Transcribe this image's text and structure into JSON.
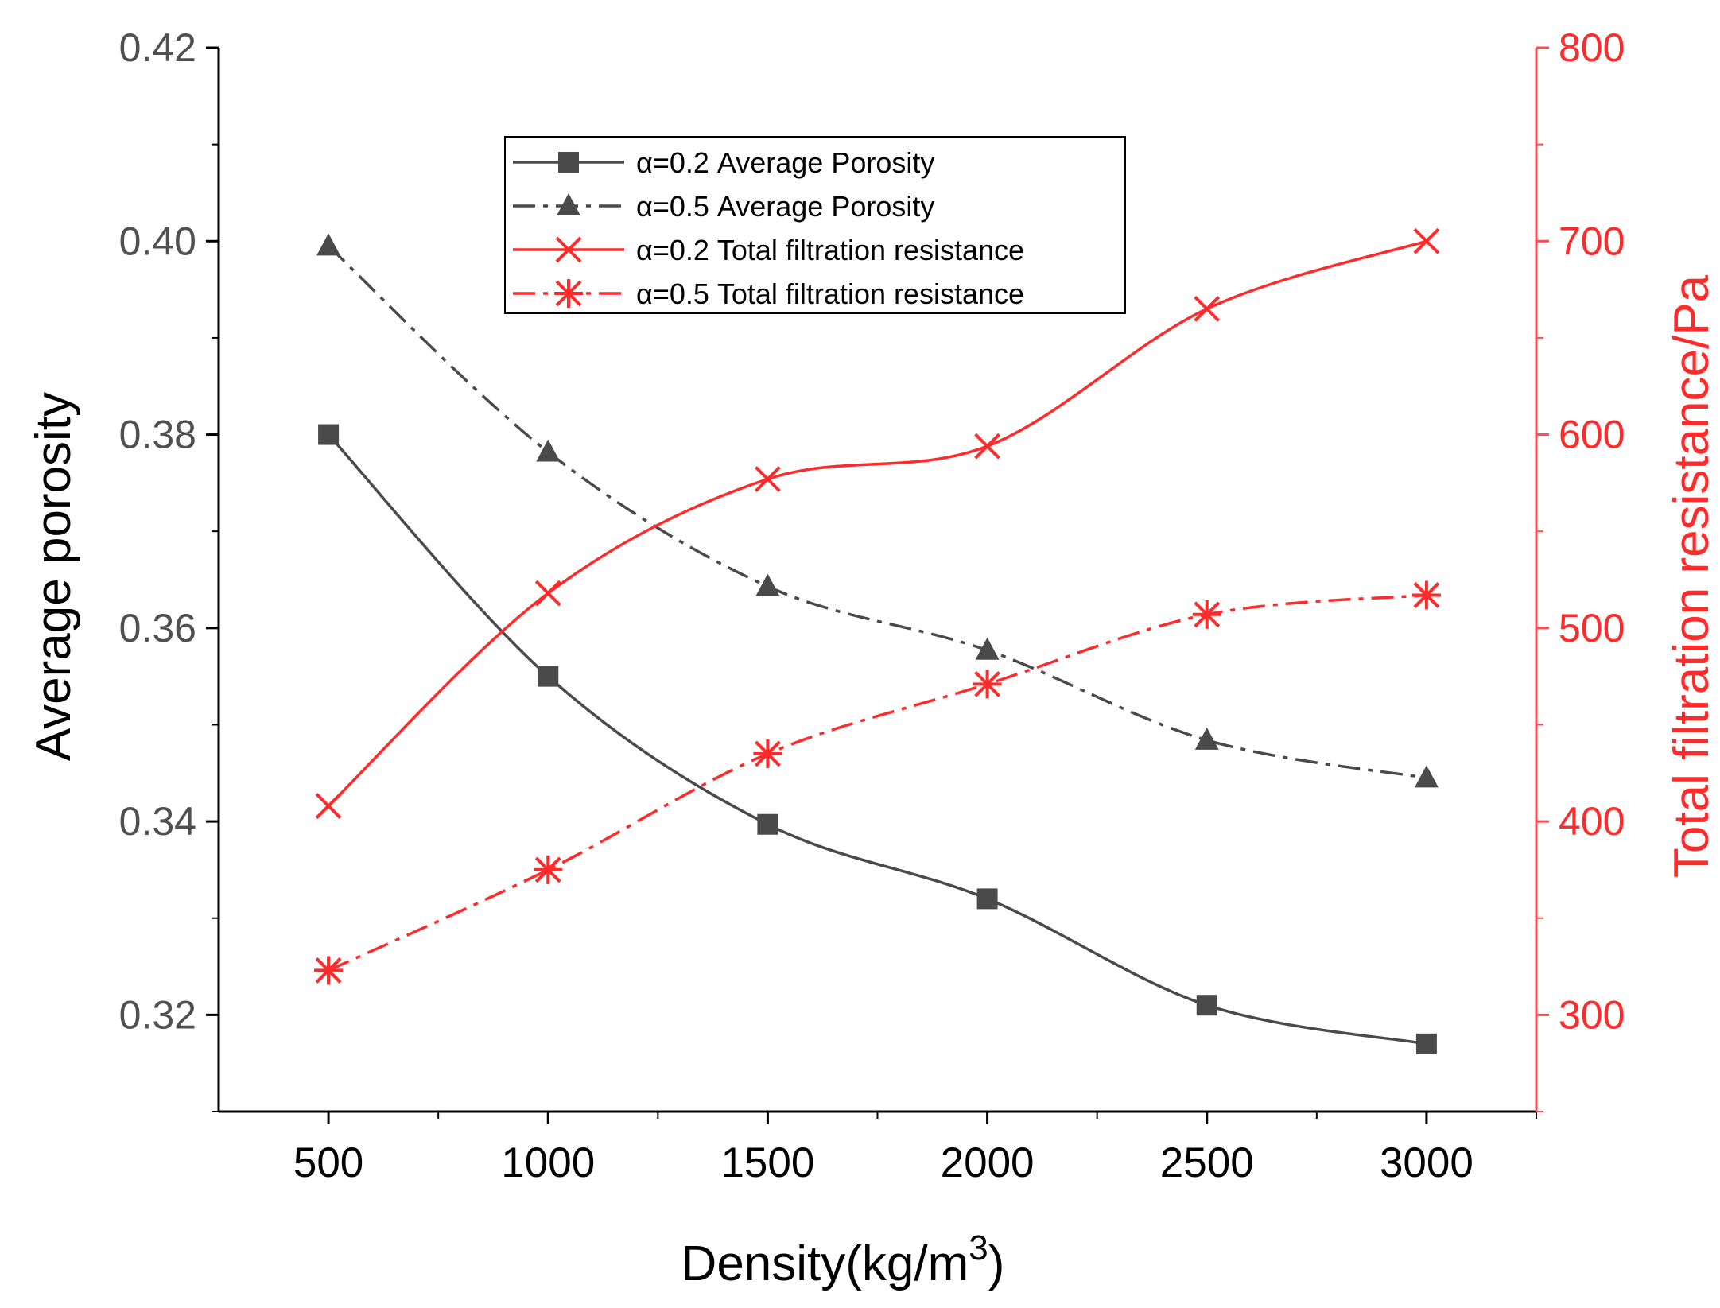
{
  "colors": {
    "porosity": "#4a4a4a",
    "resistance": "#ff2a2a",
    "axis_left": "#000000",
    "axis_right": "#ff4d4d"
  },
  "chart_data": {
    "type": "line",
    "title": "",
    "xlabel": "Density(kg/m",
    "xlabel_superscript": "3",
    "xlabel_suffix": ")",
    "ylabel": "Average porosity",
    "y2label": "Total filtration resistance/Pa",
    "x": [
      500,
      1000,
      1500,
      2000,
      2500,
      3000
    ],
    "xlim": [
      250,
      3250
    ],
    "ylim": [
      0.31,
      0.42
    ],
    "y2lim": [
      250,
      800
    ],
    "x_ticks": [
      "500",
      "1000",
      "1500",
      "2000",
      "2500",
      "3000"
    ],
    "y_ticks": [
      "0.32",
      "0.34",
      "0.36",
      "0.38",
      "0.40",
      "0.42"
    ],
    "y2_ticks": [
      "300",
      "400",
      "500",
      "600",
      "700",
      "800"
    ],
    "legend_position": "top-center",
    "series": [
      {
        "name": "α=0.2 Average Porosity",
        "axis": "left",
        "marker": "square",
        "line": "solid",
        "values": [
          0.38,
          0.355,
          0.3397,
          0.332,
          0.321,
          0.317
        ]
      },
      {
        "name": "α=0.5  Average Porosity",
        "axis": "left",
        "marker": "triangle",
        "line": "dashdot",
        "values": [
          0.3995,
          0.3782,
          0.3643,
          0.3577,
          0.3484,
          0.3445
        ]
      },
      {
        "name": "α=0.2 Total filtration resistance",
        "axis": "right",
        "marker": "x",
        "line": "solid",
        "values": [
          408,
          518,
          577,
          594,
          665,
          700
        ]
      },
      {
        "name": "α=0.5 Total filtration resistance",
        "axis": "right",
        "marker": "asterisk",
        "line": "dashdot",
        "values": [
          323,
          375,
          435,
          471,
          507,
          517
        ]
      }
    ]
  }
}
